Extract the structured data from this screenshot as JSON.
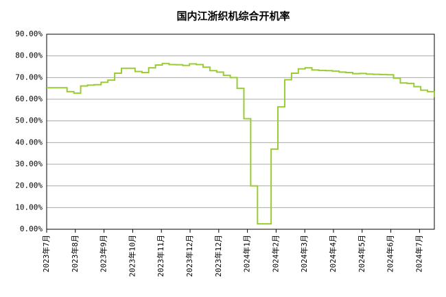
{
  "chart_data": {
    "type": "line",
    "title": "国内江浙织机综合开机率",
    "xtick_labels": [
      "2023年7月",
      "2023年8月",
      "2023年9月",
      "2023年10月",
      "2023年11月",
      "2023年12月",
      "2023年12月",
      "2024年1月",
      "2024年2月",
      "2024年3月",
      "2024年4月",
      "2024年5月",
      "2024年6月",
      "2024年7月"
    ],
    "series": [
      {
        "color": "#99cc33",
        "values": [
          65.3,
          65.3,
          65.3,
          63.5,
          62.8,
          66.1,
          66.5,
          66.7,
          67.8,
          68.8,
          72,
          74.3,
          74.3,
          72.8,
          72.3,
          74.5,
          75.8,
          76.5,
          76,
          75.9,
          75.6,
          76.3,
          76,
          74.8,
          73.2,
          72.5,
          71,
          70,
          65,
          51,
          20,
          2.5,
          2.5,
          37,
          56.5,
          69,
          72,
          74,
          74.5,
          73.5,
          73.3,
          73.2,
          73,
          72.5,
          72.3,
          71.8,
          71.9,
          71.6,
          71.5,
          71.4,
          71.3,
          69.7,
          67.5,
          67.3,
          65.8,
          64.2,
          63.5,
          61
        ]
      }
    ],
    "ylim": [
      0,
      90
    ],
    "yticks": [
      {
        "value": 0,
        "label": "0.00%"
      },
      {
        "value": 10,
        "label": "10.00%"
      },
      {
        "value": 20,
        "label": "20.00%"
      },
      {
        "value": 30,
        "label": "30.00%"
      },
      {
        "value": 40,
        "label": "40.00%"
      },
      {
        "value": 50,
        "label": "50.00%"
      },
      {
        "value": 60,
        "label": "60.00%"
      },
      {
        "value": 70,
        "label": "70.00%"
      },
      {
        "value": 80,
        "label": "80.00%"
      },
      {
        "value": 90,
        "label": "90.00%"
      }
    ],
    "grid": true,
    "step": true
  }
}
